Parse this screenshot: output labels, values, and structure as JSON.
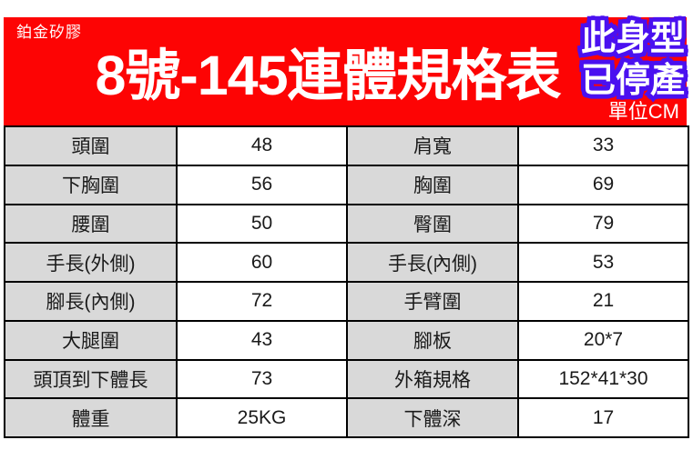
{
  "banner": {
    "brand": "鉑金矽膠",
    "title": "8號-145連體規格表",
    "badge_line1": "此身型",
    "badge_line2": "已停產",
    "unit_label": "單位CM"
  },
  "colors": {
    "banner_red": "#fd0404",
    "badge_blue": "#4a10f0",
    "label_gray": "#d9d9d9"
  },
  "table": {
    "rows": [
      {
        "label1": "頭圍",
        "value1": "48",
        "label2": "肩寬",
        "value2": "33"
      },
      {
        "label1": "下胸圍",
        "value1": "56",
        "label2": "胸圍",
        "value2": "69"
      },
      {
        "label1": "腰圍",
        "value1": "50",
        "label2": "臀圍",
        "value2": "79"
      },
      {
        "label1": "手長(外側)",
        "value1": "60",
        "label2": "手長(內側)",
        "value2": "53"
      },
      {
        "label1": "腳長(內側)",
        "value1": "72",
        "label2": "手臂圍",
        "value2": "21"
      },
      {
        "label1": "大腿圍",
        "value1": "43",
        "label2": "腳板",
        "value2": "20*7"
      },
      {
        "label1": "頭頂到下體長",
        "value1": "73",
        "label2": "外箱規格",
        "value2": "152*41*30"
      },
      {
        "label1": "體重",
        "value1": "25KG",
        "label2": "下體深",
        "value2": "17"
      }
    ]
  }
}
